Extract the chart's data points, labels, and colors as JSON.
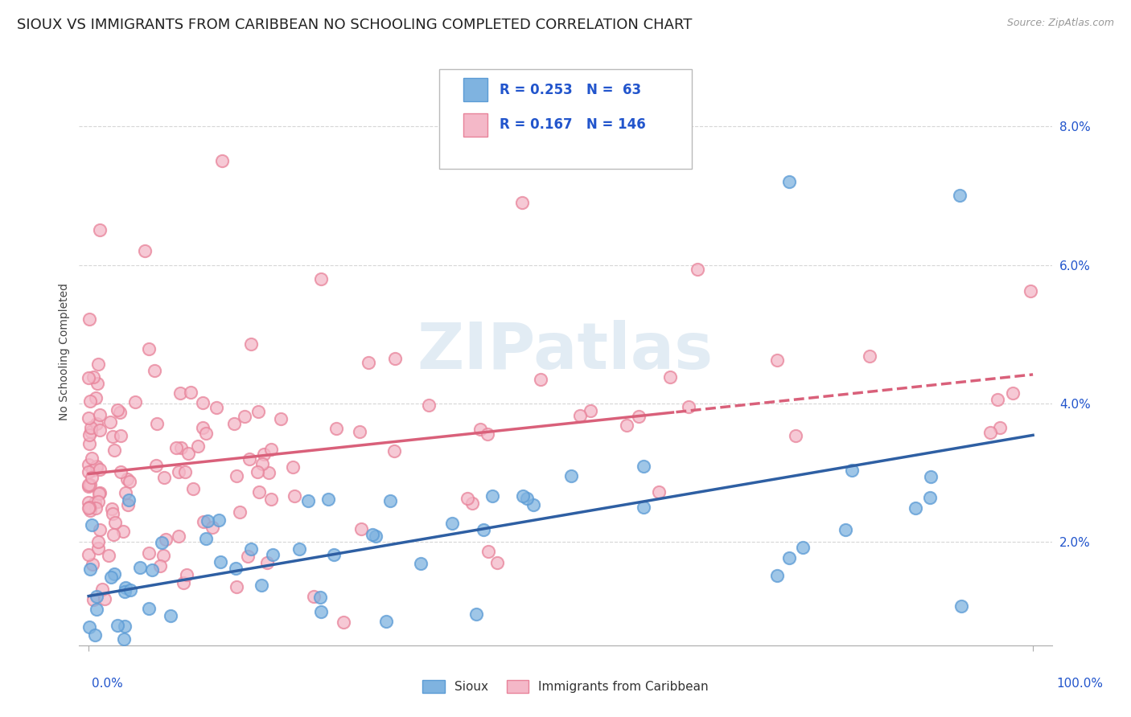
{
  "title": "SIOUX VS IMMIGRANTS FROM CARIBBEAN NO SCHOOLING COMPLETED CORRELATION CHART",
  "source": "Source: ZipAtlas.com",
  "ylabel": "No Schooling Completed",
  "y_ticks": [
    "2.0%",
    "4.0%",
    "6.0%",
    "8.0%"
  ],
  "y_tick_vals": [
    0.02,
    0.04,
    0.06,
    0.08
  ],
  "sioux_R": 0.253,
  "sioux_N": 63,
  "carib_R": 0.167,
  "carib_N": 146,
  "sioux_marker_color": "#7fb3e0",
  "sioux_edge_color": "#5b9bd5",
  "carib_marker_color": "#f4b8c8",
  "carib_edge_color": "#e8839a",
  "sioux_line_color": "#2e5fa3",
  "carib_line_color": "#d9607a",
  "watermark_color": "#d0e0ee",
  "title_fontsize": 13,
  "axis_label_fontsize": 10,
  "tick_fontsize": 11,
  "legend_text_color": "#2255cc",
  "sioux_intercept": 0.013,
  "sioux_slope": 0.015,
  "carib_intercept": 0.03,
  "carib_slope": 0.01
}
